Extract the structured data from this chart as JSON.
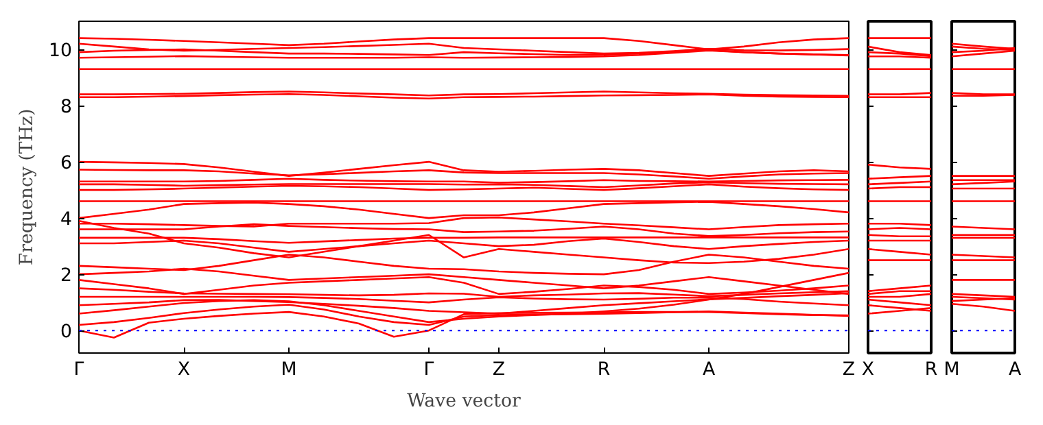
{
  "chart_data": [
    {
      "type": "line",
      "xlabel": "Wave vector",
      "ylabel": "Frequency (THz)",
      "grid": false,
      "line_style": "solid",
      "marker": "none",
      "categories": [
        "Γ",
        null,
        null,
        "X",
        null,
        null,
        "M",
        null,
        null,
        null,
        "Γ",
        null,
        "Z",
        null,
        null,
        "R",
        null,
        null,
        "A",
        null,
        null,
        null,
        "Z"
      ],
      "ylim": [
        -0.8,
        11
      ],
      "yticks": [
        0,
        2,
        4,
        6,
        8,
        10
      ],
      "ref_lines": [
        {
          "axis": "y",
          "value": 0,
          "label": null,
          "color": "#0000ff",
          "line_style": "dotted"
        }
      ],
      "series": [
        {
          "color": "#ff0000",
          "values": [
            10.4,
            10.38,
            10.34,
            10.3,
            10.25,
            10.2,
            10.15,
            10.2,
            10.28,
            10.35,
            10.4,
            10.4,
            10.4,
            10.4,
            10.4,
            10.4,
            10.3,
            10.15,
            10.0,
            10.1,
            10.25,
            10.35,
            10.4
          ]
        },
        {
          "color": "#ff0000",
          "values": [
            10.2,
            10.1,
            10.0,
            9.95,
            9.98,
            10.02,
            10.05,
            10.08,
            10.12,
            10.16,
            10.2,
            10.05,
            10.0,
            9.95,
            9.9,
            9.85,
            9.88,
            9.94,
            10.02,
            9.97,
            9.96,
            9.98,
            10.01
          ]
        },
        {
          "color": "#ff0000",
          "values": [
            9.9,
            9.95,
            9.98,
            10.0,
            9.95,
            9.9,
            9.85,
            9.85,
            9.84,
            9.82,
            9.8,
            9.9,
            9.86,
            9.83,
            9.8,
            9.81,
            9.85,
            9.92,
            9.98,
            9.9,
            9.85,
            9.82,
            9.8
          ]
        },
        {
          "color": "#ff0000",
          "values": [
            9.7,
            9.72,
            9.74,
            9.76,
            9.74,
            9.72,
            9.7,
            9.7,
            9.7,
            9.7,
            9.72,
            9.7,
            9.71,
            9.72,
            9.73,
            9.75,
            9.8,
            9.88,
            9.96,
            9.9,
            9.85,
            9.82,
            9.78
          ]
        },
        {
          "color": "#ff0000",
          "values": [
            9.3,
            9.3,
            9.3,
            9.3,
            9.3,
            9.3,
            9.3,
            9.3,
            9.3,
            9.3,
            9.3,
            9.3,
            9.3,
            9.3,
            9.3,
            9.3,
            9.3,
            9.3,
            9.3,
            9.3,
            9.3,
            9.3,
            9.3
          ]
        },
        {
          "color": "#ff0000",
          "values": [
            8.4,
            8.4,
            8.41,
            8.42,
            8.45,
            8.48,
            8.5,
            8.47,
            8.43,
            8.4,
            8.36,
            8.4,
            8.41,
            8.44,
            8.47,
            8.5,
            8.47,
            8.44,
            8.42,
            8.39,
            8.37,
            8.36,
            8.35
          ]
        },
        {
          "color": "#ff0000",
          "values": [
            8.3,
            8.3,
            8.32,
            8.34,
            8.37,
            8.39,
            8.41,
            8.38,
            8.33,
            8.28,
            8.25,
            8.3,
            8.31,
            8.32,
            8.34,
            8.36,
            8.37,
            8.38,
            8.4,
            8.35,
            8.32,
            8.31,
            8.3
          ]
        },
        {
          "color": "#ff0000",
          "values": [
            6.0,
            5.98,
            5.96,
            5.92,
            5.8,
            5.65,
            5.5,
            5.62,
            5.75,
            5.88,
            6.0,
            5.7,
            5.65,
            5.68,
            5.72,
            5.75,
            5.7,
            5.6,
            5.5,
            5.58,
            5.66,
            5.7,
            5.66
          ]
        },
        {
          "color": "#ff0000",
          "values": [
            5.72,
            5.71,
            5.7,
            5.7,
            5.66,
            5.58,
            5.52,
            5.56,
            5.61,
            5.66,
            5.7,
            5.62,
            5.6,
            5.6,
            5.6,
            5.6,
            5.55,
            5.48,
            5.4,
            5.48,
            5.55,
            5.58,
            5.6
          ]
        },
        {
          "color": "#ff0000",
          "values": [
            5.3,
            5.3,
            5.3,
            5.3,
            5.32,
            5.36,
            5.4,
            5.36,
            5.33,
            5.31,
            5.3,
            5.3,
            5.26,
            5.28,
            5.31,
            5.35,
            5.32,
            5.31,
            5.3,
            5.32,
            5.34,
            5.35,
            5.36
          ]
        },
        {
          "color": "#ff0000",
          "values": [
            5.2,
            5.2,
            5.18,
            5.15,
            5.17,
            5.19,
            5.21,
            5.21,
            5.21,
            5.21,
            5.21,
            5.19,
            5.2,
            5.18,
            5.14,
            5.1,
            5.16,
            5.23,
            5.27,
            5.24,
            5.22,
            5.21,
            5.2
          ]
        },
        {
          "color": "#ff0000",
          "values": [
            5.0,
            5.0,
            5.02,
            5.05,
            5.08,
            5.12,
            5.15,
            5.13,
            5.1,
            5.05,
            5.0,
            5.02,
            5.05,
            5.08,
            5.04,
            5.0,
            5.06,
            5.13,
            5.2,
            5.12,
            5.06,
            5.02,
            5.0
          ]
        },
        {
          "color": "#ff0000",
          "values": [
            4.6,
            4.6,
            4.6,
            4.6,
            4.6,
            4.6,
            4.6,
            4.6,
            4.6,
            4.6,
            4.6,
            4.6,
            4.6,
            4.6,
            4.6,
            4.6,
            4.6,
            4.6,
            4.6,
            4.6,
            4.6,
            4.6,
            4.6
          ]
        },
        {
          "color": "#ff0000",
          "values": [
            4.0,
            4.15,
            4.3,
            4.5,
            4.53,
            4.55,
            4.5,
            4.42,
            4.3,
            4.15,
            4.0,
            4.1,
            4.1,
            4.2,
            4.35,
            4.5,
            4.53,
            4.56,
            4.58,
            4.5,
            4.42,
            4.32,
            4.2
          ]
        },
        {
          "color": "#ff0000",
          "values": [
            3.8,
            3.8,
            3.78,
            3.75,
            3.72,
            3.7,
            3.8,
            3.8,
            3.8,
            3.8,
            3.82,
            4.0,
            4.02,
            3.95,
            3.88,
            3.8,
            3.74,
            3.67,
            3.6,
            3.68,
            3.75,
            3.78,
            3.8
          ]
        },
        {
          "color": "#ff0000",
          "values": [
            3.6,
            3.6,
            3.6,
            3.6,
            3.7,
            3.78,
            3.72,
            3.68,
            3.64,
            3.61,
            3.6,
            3.5,
            3.52,
            3.55,
            3.62,
            3.7,
            3.6,
            3.45,
            3.36,
            3.4,
            3.46,
            3.5,
            3.52
          ]
        },
        {
          "color": "#ff0000",
          "values": [
            3.3,
            3.3,
            3.3,
            3.3,
            3.25,
            3.18,
            3.12,
            3.17,
            3.22,
            3.27,
            3.3,
            3.3,
            3.31,
            3.31,
            3.31,
            3.31,
            3.31,
            3.31,
            3.31,
            3.31,
            3.31,
            3.31,
            3.31
          ]
        },
        {
          "color": "#ff0000",
          "values": [
            3.1,
            3.1,
            3.15,
            3.2,
            3.1,
            2.95,
            2.8,
            2.9,
            3.0,
            3.1,
            3.2,
            3.1,
            3.0,
            3.05,
            3.18,
            3.27,
            3.15,
            3.0,
            2.9,
            3.0,
            3.08,
            3.15,
            3.2
          ]
        },
        {
          "color": "#ff0000",
          "values": [
            3.9,
            3.65,
            3.45,
            3.1,
            2.95,
            2.75,
            2.6,
            2.8,
            3.0,
            3.2,
            3.4,
            2.6,
            2.9,
            2.8,
            2.7,
            2.6,
            2.5,
            2.42,
            2.4,
            2.45,
            2.55,
            2.7,
            2.9
          ]
        },
        {
          "color": "#ff0000",
          "values": [
            2.3,
            2.25,
            2.2,
            2.15,
            2.3,
            2.5,
            2.7,
            2.6,
            2.45,
            2.3,
            2.2,
            2.18,
            2.1,
            2.05,
            2.02,
            2.0,
            2.15,
            2.45,
            2.7,
            2.6,
            2.45,
            2.3,
            2.2
          ]
        },
        {
          "color": "#ff0000",
          "values": [
            2.0,
            2.05,
            2.1,
            2.2,
            2.1,
            1.95,
            1.8,
            1.85,
            1.9,
            1.95,
            2.0,
            1.9,
            1.8,
            1.7,
            1.6,
            1.5,
            1.6,
            1.75,
            1.9,
            1.75,
            1.6,
            1.45,
            1.3
          ]
        },
        {
          "color": "#ff0000",
          "values": [
            1.8,
            1.65,
            1.5,
            1.3,
            1.45,
            1.6,
            1.7,
            1.75,
            1.8,
            1.85,
            1.9,
            1.7,
            1.3,
            1.38,
            1.48,
            1.6,
            1.55,
            1.45,
            1.3,
            1.35,
            1.42,
            1.5,
            1.6
          ]
        },
        {
          "color": "#ff0000",
          "values": [
            1.5,
            1.45,
            1.38,
            1.32,
            1.31,
            1.3,
            1.29,
            1.27,
            1.25,
            1.27,
            1.32,
            1.31,
            1.2,
            1.25,
            1.28,
            1.32,
            1.33,
            1.28,
            1.22,
            1.27,
            1.32,
            1.36,
            1.4
          ]
        },
        {
          "color": "#ff0000",
          "values": [
            1.2,
            1.2,
            1.2,
            1.2,
            1.2,
            1.2,
            1.19,
            1.16,
            1.12,
            1.06,
            1.0,
            1.1,
            1.18,
            1.14,
            1.11,
            1.1,
            1.13,
            1.17,
            1.17,
            1.12,
            1.03,
            0.96,
            0.9
          ]
        },
        {
          "color": "#ff0000",
          "values": [
            0.9,
            0.95,
            1.0,
            1.08,
            1.09,
            1.05,
            1.01,
            0.95,
            0.88,
            0.8,
            0.7,
            0.65,
            0.6,
            0.7,
            0.8,
            0.9,
            0.97,
            1.04,
            1.11,
            1.16,
            1.22,
            1.27,
            1.33
          ]
        },
        {
          "color": "#ff0000",
          "values": [
            0.6,
            0.72,
            0.85,
            0.98,
            1.05,
            1.08,
            1.04,
            0.9,
            0.7,
            0.5,
            0.3,
            0.42,
            0.5,
            0.55,
            0.6,
            0.68,
            0.78,
            0.92,
            1.1,
            1.3,
            1.55,
            1.8,
            2.05
          ]
        },
        {
          "color": "#ff0000",
          "values": [
            0.2,
            0.3,
            0.45,
            0.62,
            0.75,
            0.85,
            0.92,
            0.75,
            0.5,
            0.3,
            0.2,
            0.5,
            0.55,
            0.57,
            0.58,
            0.6,
            0.62,
            0.65,
            0.68,
            0.64,
            0.6,
            0.56,
            0.52
          ]
        },
        {
          "color": "#ff0000",
          "values": [
            0.0,
            -0.25,
            0.28,
            0.42,
            0.52,
            0.6,
            0.66,
            0.5,
            0.25,
            -0.22,
            0.0,
            0.58,
            0.62,
            0.63,
            0.64,
            0.65,
            0.66,
            0.66,
            0.66,
            0.62,
            0.58,
            0.55,
            0.54
          ]
        }
      ]
    },
    {
      "type": "line",
      "tick_labels": "x",
      "grid": false,
      "line_style": "solid",
      "marker": "none",
      "categories": [
        "X",
        null,
        "R"
      ],
      "ylim": [
        -0.8,
        11
      ],
      "yticks": [
        0,
        2,
        4,
        6,
        8,
        10
      ],
      "ref_lines": [
        {
          "axis": "y",
          "value": 0,
          "label": null,
          "color": "#0000ff",
          "line_style": "dotted"
        }
      ],
      "series": [
        {
          "color": "#ff0000",
          "values": [
            10.4,
            10.4,
            10.4
          ]
        },
        {
          "color": "#ff0000",
          "values": [
            10.1,
            9.9,
            9.8
          ]
        },
        {
          "color": "#ff0000",
          "values": [
            9.9,
            9.85,
            9.76
          ]
        },
        {
          "color": "#ff0000",
          "values": [
            9.75,
            9.75,
            9.7
          ]
        },
        {
          "color": "#ff0000",
          "values": [
            9.3,
            9.3,
            9.3
          ]
        },
        {
          "color": "#ff0000",
          "values": [
            8.4,
            8.4,
            8.45
          ]
        },
        {
          "color": "#ff0000",
          "values": [
            8.3,
            8.3,
            8.3
          ]
        },
        {
          "color": "#ff0000",
          "values": [
            5.9,
            5.8,
            5.75
          ]
        },
        {
          "color": "#ff0000",
          "values": [
            5.4,
            5.45,
            5.5
          ]
        },
        {
          "color": "#ff0000",
          "values": [
            5.2,
            5.25,
            5.3
          ]
        },
        {
          "color": "#ff0000",
          "values": [
            5.05,
            5.1,
            5.1
          ]
        },
        {
          "color": "#ff0000",
          "values": [
            4.6,
            4.6,
            4.6
          ]
        },
        {
          "color": "#ff0000",
          "values": [
            3.8,
            3.8,
            3.75
          ]
        },
        {
          "color": "#ff0000",
          "values": [
            3.6,
            3.65,
            3.6
          ]
        },
        {
          "color": "#ff0000",
          "values": [
            3.4,
            3.35,
            3.35
          ]
        },
        {
          "color": "#ff0000",
          "values": [
            3.2,
            3.2,
            3.2
          ]
        },
        {
          "color": "#ff0000",
          "values": [
            2.9,
            2.8,
            2.7
          ]
        },
        {
          "color": "#ff0000",
          "values": [
            2.5,
            2.5,
            2.5
          ]
        },
        {
          "color": "#ff0000",
          "values": [
            1.4,
            1.5,
            1.6
          ]
        },
        {
          "color": "#ff0000",
          "values": [
            1.3,
            1.4,
            1.4
          ]
        },
        {
          "color": "#ff0000",
          "values": [
            1.2,
            1.2,
            1.3
          ]
        },
        {
          "color": "#ff0000",
          "values": [
            1.1,
            1.0,
            0.9
          ]
        },
        {
          "color": "#ff0000",
          "values": [
            0.9,
            0.8,
            0.7
          ]
        },
        {
          "color": "#ff0000",
          "values": [
            0.6,
            0.7,
            0.8
          ]
        }
      ]
    },
    {
      "type": "line",
      "tick_labels": "x",
      "grid": false,
      "line_style": "solid",
      "marker": "none",
      "categories": [
        "M",
        null,
        "A"
      ],
      "ylim": [
        -0.8,
        11
      ],
      "yticks": [
        0,
        2,
        4,
        6,
        8,
        10
      ],
      "ref_lines": [
        {
          "axis": "y",
          "value": 0,
          "label": null,
          "color": "#0000ff",
          "line_style": "dotted"
        }
      ],
      "series": [
        {
          "color": "#ff0000",
          "values": [
            10.2,
            10.1,
            10.02
          ]
        },
        {
          "color": "#ff0000",
          "values": [
            10.1,
            10.02,
            9.98
          ]
        },
        {
          "color": "#ff0000",
          "values": [
            9.9,
            9.95,
            10.05
          ]
        },
        {
          "color": "#ff0000",
          "values": [
            9.75,
            9.85,
            9.95
          ]
        },
        {
          "color": "#ff0000",
          "values": [
            9.3,
            9.3,
            9.3
          ]
        },
        {
          "color": "#ff0000",
          "values": [
            8.45,
            8.4,
            8.4
          ]
        },
        {
          "color": "#ff0000",
          "values": [
            8.35,
            8.35,
            8.38
          ]
        },
        {
          "color": "#ff0000",
          "values": [
            5.5,
            5.5,
            5.5
          ]
        },
        {
          "color": "#ff0000",
          "values": [
            5.35,
            5.35,
            5.35
          ]
        },
        {
          "color": "#ff0000",
          "values": [
            5.2,
            5.25,
            5.3
          ]
        },
        {
          "color": "#ff0000",
          "values": [
            5.05,
            5.05,
            5.05
          ]
        },
        {
          "color": "#ff0000",
          "values": [
            4.6,
            4.6,
            4.6
          ]
        },
        {
          "color": "#ff0000",
          "values": [
            3.7,
            3.65,
            3.6
          ]
        },
        {
          "color": "#ff0000",
          "values": [
            3.4,
            3.4,
            3.4
          ]
        },
        {
          "color": "#ff0000",
          "values": [
            3.3,
            3.3,
            3.3
          ]
        },
        {
          "color": "#ff0000",
          "values": [
            2.7,
            2.65,
            2.6
          ]
        },
        {
          "color": "#ff0000",
          "values": [
            2.5,
            2.5,
            2.5
          ]
        },
        {
          "color": "#ff0000",
          "values": [
            1.8,
            1.8,
            1.8
          ]
        },
        {
          "color": "#ff0000",
          "values": [
            1.3,
            1.25,
            1.2
          ]
        },
        {
          "color": "#ff0000",
          "values": [
            1.2,
            1.15,
            1.1
          ]
        },
        {
          "color": "#ff0000",
          "values": [
            1.05,
            1.1,
            1.15
          ]
        },
        {
          "color": "#ff0000",
          "values": [
            0.95,
            0.85,
            0.7
          ]
        }
      ]
    }
  ]
}
